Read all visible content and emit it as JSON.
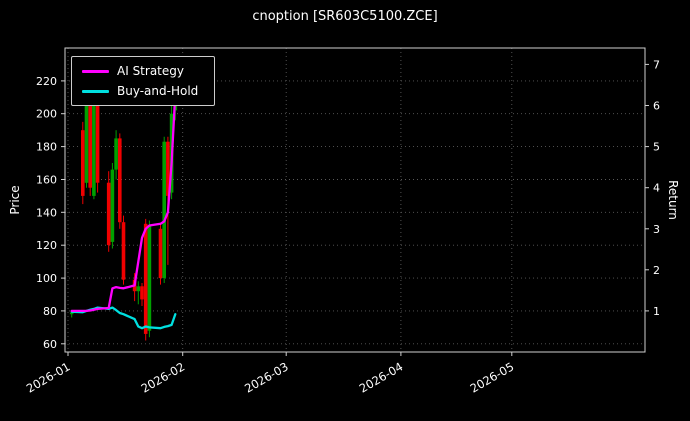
{
  "window": {
    "title": "cnoption [SR603C5100.ZCE]"
  },
  "colors": {
    "background": "#000000",
    "grid": "#5a5a5a",
    "frame": "#cfcfcf",
    "text": "#ffffff",
    "candle_up": "#00a000",
    "candle_down": "#f10000",
    "ai_strategy": "#ff00ff",
    "buy_and_hold": "#00e0e0"
  },
  "legend": [
    {
      "label": "AI Strategy",
      "color": "#ff00ff"
    },
    {
      "label": "Buy-and-Hold",
      "color": "#00e0e0"
    }
  ],
  "axes": {
    "left_label": "Price",
    "right_label": "Return",
    "left_ticks": [
      60,
      80,
      100,
      120,
      140,
      160,
      180,
      200,
      220
    ],
    "right_ticks": [
      1,
      2,
      3,
      4,
      5,
      6,
      7
    ],
    "x_ticks": [
      {
        "label": "2026-01",
        "date": "2026-01-01"
      },
      {
        "label": "2026-02",
        "date": "2026-02-01"
      },
      {
        "label": "2026-03",
        "date": "2026-03-01"
      },
      {
        "label": "2026-04",
        "date": "2026-04-01"
      },
      {
        "label": "2026-05",
        "date": "2026-05-01"
      }
    ]
  },
  "chart_data": {
    "type": "candlestick+line",
    "title": "cnoption [SR603C5100.ZCE]",
    "xlabel": "",
    "left_ylabel": "Price",
    "right_ylabel": "Return",
    "left_ylim": [
      55,
      240
    ],
    "right_ylim": [
      0,
      7.4
    ],
    "x_range": [
      "2026-01-01",
      "2026-06-06"
    ],
    "grid": true,
    "legend_position": "upper left",
    "candles": {
      "dates": [
        "2026-01-02",
        "2026-01-05",
        "2026-01-06",
        "2026-01-07",
        "2026-01-08",
        "2026-01-09",
        "2026-01-12",
        "2026-01-13",
        "2026-01-14",
        "2026-01-15",
        "2026-01-16",
        "2026-01-19",
        "2026-01-20",
        "2026-01-21",
        "2026-01-22",
        "2026-01-23",
        "2026-01-26",
        "2026-01-27",
        "2026-01-28",
        "2026-01-29",
        "2026-01-30"
      ],
      "open": [
        78,
        190,
        158,
        215,
        150,
        205,
        158,
        122,
        166,
        185,
        134,
        99,
        92,
        95,
        133,
        68,
        130,
        100,
        183,
        152,
        202
      ],
      "high": [
        80,
        195,
        222,
        220,
        212,
        210,
        165,
        170,
        190,
        188,
        138,
        103,
        98,
        97,
        136,
        135,
        133,
        186,
        186,
        205,
        235
      ],
      "low": [
        76,
        145,
        155,
        150,
        148,
        152,
        116,
        118,
        160,
        130,
        96,
        86,
        84,
        83,
        62,
        64,
        96,
        97,
        108,
        148,
        196
      ],
      "close": [
        79,
        150,
        218,
        155,
        208,
        158,
        120,
        166,
        185,
        134,
        99,
        92,
        95,
        87,
        66,
        132,
        100,
        183,
        150,
        200,
        232
      ]
    },
    "series": [
      {
        "name": "AI Strategy",
        "axis": "right",
        "color": "#ff00ff",
        "values": [
          1.0,
          1.0,
          1.0,
          1.01,
          1.03,
          1.05,
          1.07,
          1.55,
          1.58,
          1.56,
          1.55,
          1.62,
          2.2,
          2.78,
          3.0,
          3.08,
          3.12,
          3.18,
          3.4,
          4.6,
          6.3
        ]
      },
      {
        "name": "Buy-and-Hold",
        "axis": "right",
        "color": "#00e0e0",
        "values": [
          0.98,
          0.97,
          1.0,
          1.03,
          1.05,
          1.08,
          1.05,
          1.08,
          1.02,
          0.95,
          0.92,
          0.8,
          0.62,
          0.58,
          0.62,
          0.6,
          0.58,
          0.61,
          0.63,
          0.66,
          0.92
        ]
      }
    ]
  }
}
